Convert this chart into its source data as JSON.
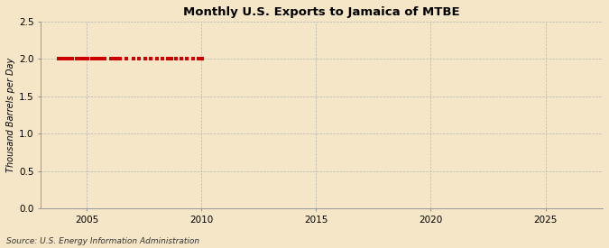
{
  "title": "Monthly U.S. Exports to Jamaica of MTBE",
  "ylabel": "Thousand Barrels per Day",
  "source": "Source: U.S. Energy Information Administration",
  "background_color": "#f5e6c8",
  "plot_bg_color": "#f5e6c8",
  "line_color": "#cc0000",
  "xlim": [
    2003.0,
    2027.5
  ],
  "ylim": [
    0.0,
    2.5
  ],
  "yticks": [
    0.0,
    0.5,
    1.0,
    1.5,
    2.0,
    2.5
  ],
  "xticks": [
    2005,
    2010,
    2015,
    2020,
    2025
  ],
  "data_values_approx": {
    "2003-10": 2.0,
    "2003-11": 2.0,
    "2003-12": 2.0,
    "2004-01": 2.0,
    "2004-02": 2.0,
    "2004-03": 2.0,
    "2004-05": 2.0,
    "2004-07": 2.0,
    "2004-08": 2.0,
    "2004-09": 2.0,
    "2004-10": 2.0,
    "2004-11": 2.0,
    "2005-01": 2.0,
    "2005-03": 2.0,
    "2005-05": 2.0,
    "2005-06": 2.0,
    "2005-08": 2.0,
    "2005-09": 2.0,
    "2005-10": 2.0,
    "2006-01": 2.0,
    "2006-03": 2.0,
    "2006-04": 2.0,
    "2006-06": 2.0,
    "2006-09": 2.0,
    "2007-01": 2.0,
    "2007-04": 2.0,
    "2007-07": 2.0,
    "2007-10": 2.0,
    "2008-01": 2.0,
    "2008-04": 2.0,
    "2008-07": 2.0,
    "2008-09": 2.0,
    "2008-11": 2.0,
    "2009-02": 2.0,
    "2009-05": 2.0,
    "2009-08": 2.0,
    "2009-11": 2.0,
    "2010-01": 2.0
  }
}
